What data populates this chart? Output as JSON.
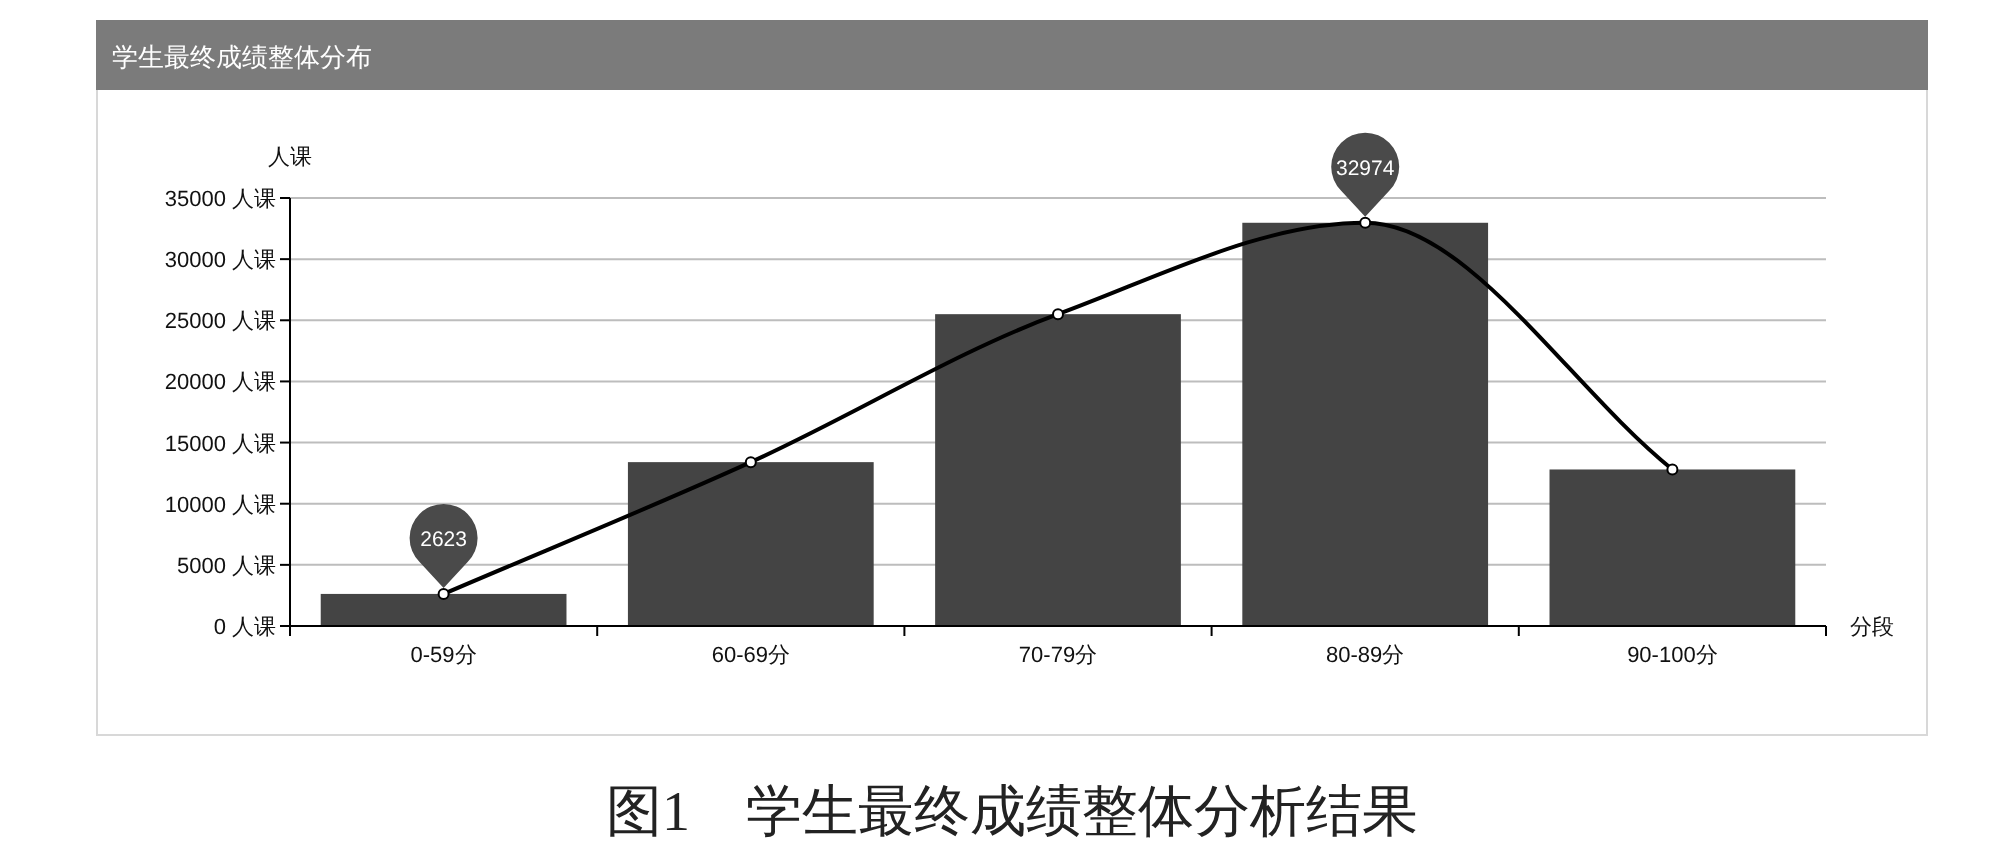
{
  "chart_data": {
    "type": "bar",
    "title": "学生最终成绩整体分布",
    "ylabel": "人课",
    "xlabel": "分段",
    "categories": [
      "0-59分",
      "60-69分",
      "70-79分",
      "80-89分",
      "90-100分"
    ],
    "series": [
      {
        "color": "#444444",
        "values": [
          2623,
          13400,
          25500,
          32974,
          12800
        ]
      },
      {
        "type": "line",
        "color": "#000000",
        "marker": "circle",
        "values": [
          2623,
          13400,
          25500,
          32974,
          12800
        ],
        "value_labels": [
          "2623",
          null,
          null,
          "32974",
          null
        ]
      }
    ],
    "ylim": [
      0,
      35000
    ],
    "yticks": [
      {
        "value": 0,
        "label": "0 人课"
      },
      {
        "value": 5000,
        "label": "5000 人课"
      },
      {
        "value": 10000,
        "label": "10000 人课"
      },
      {
        "value": 15000,
        "label": "15000 人课"
      },
      {
        "value": 20000,
        "label": "20000 人课"
      },
      {
        "value": 25000,
        "label": "25000 人课"
      },
      {
        "value": 30000,
        "label": "30000 人课"
      },
      {
        "value": 35000,
        "label": "35000 人课"
      }
    ],
    "grid": "y",
    "annotations": [
      "图1　学生最终成绩整体分析结果"
    ]
  }
}
